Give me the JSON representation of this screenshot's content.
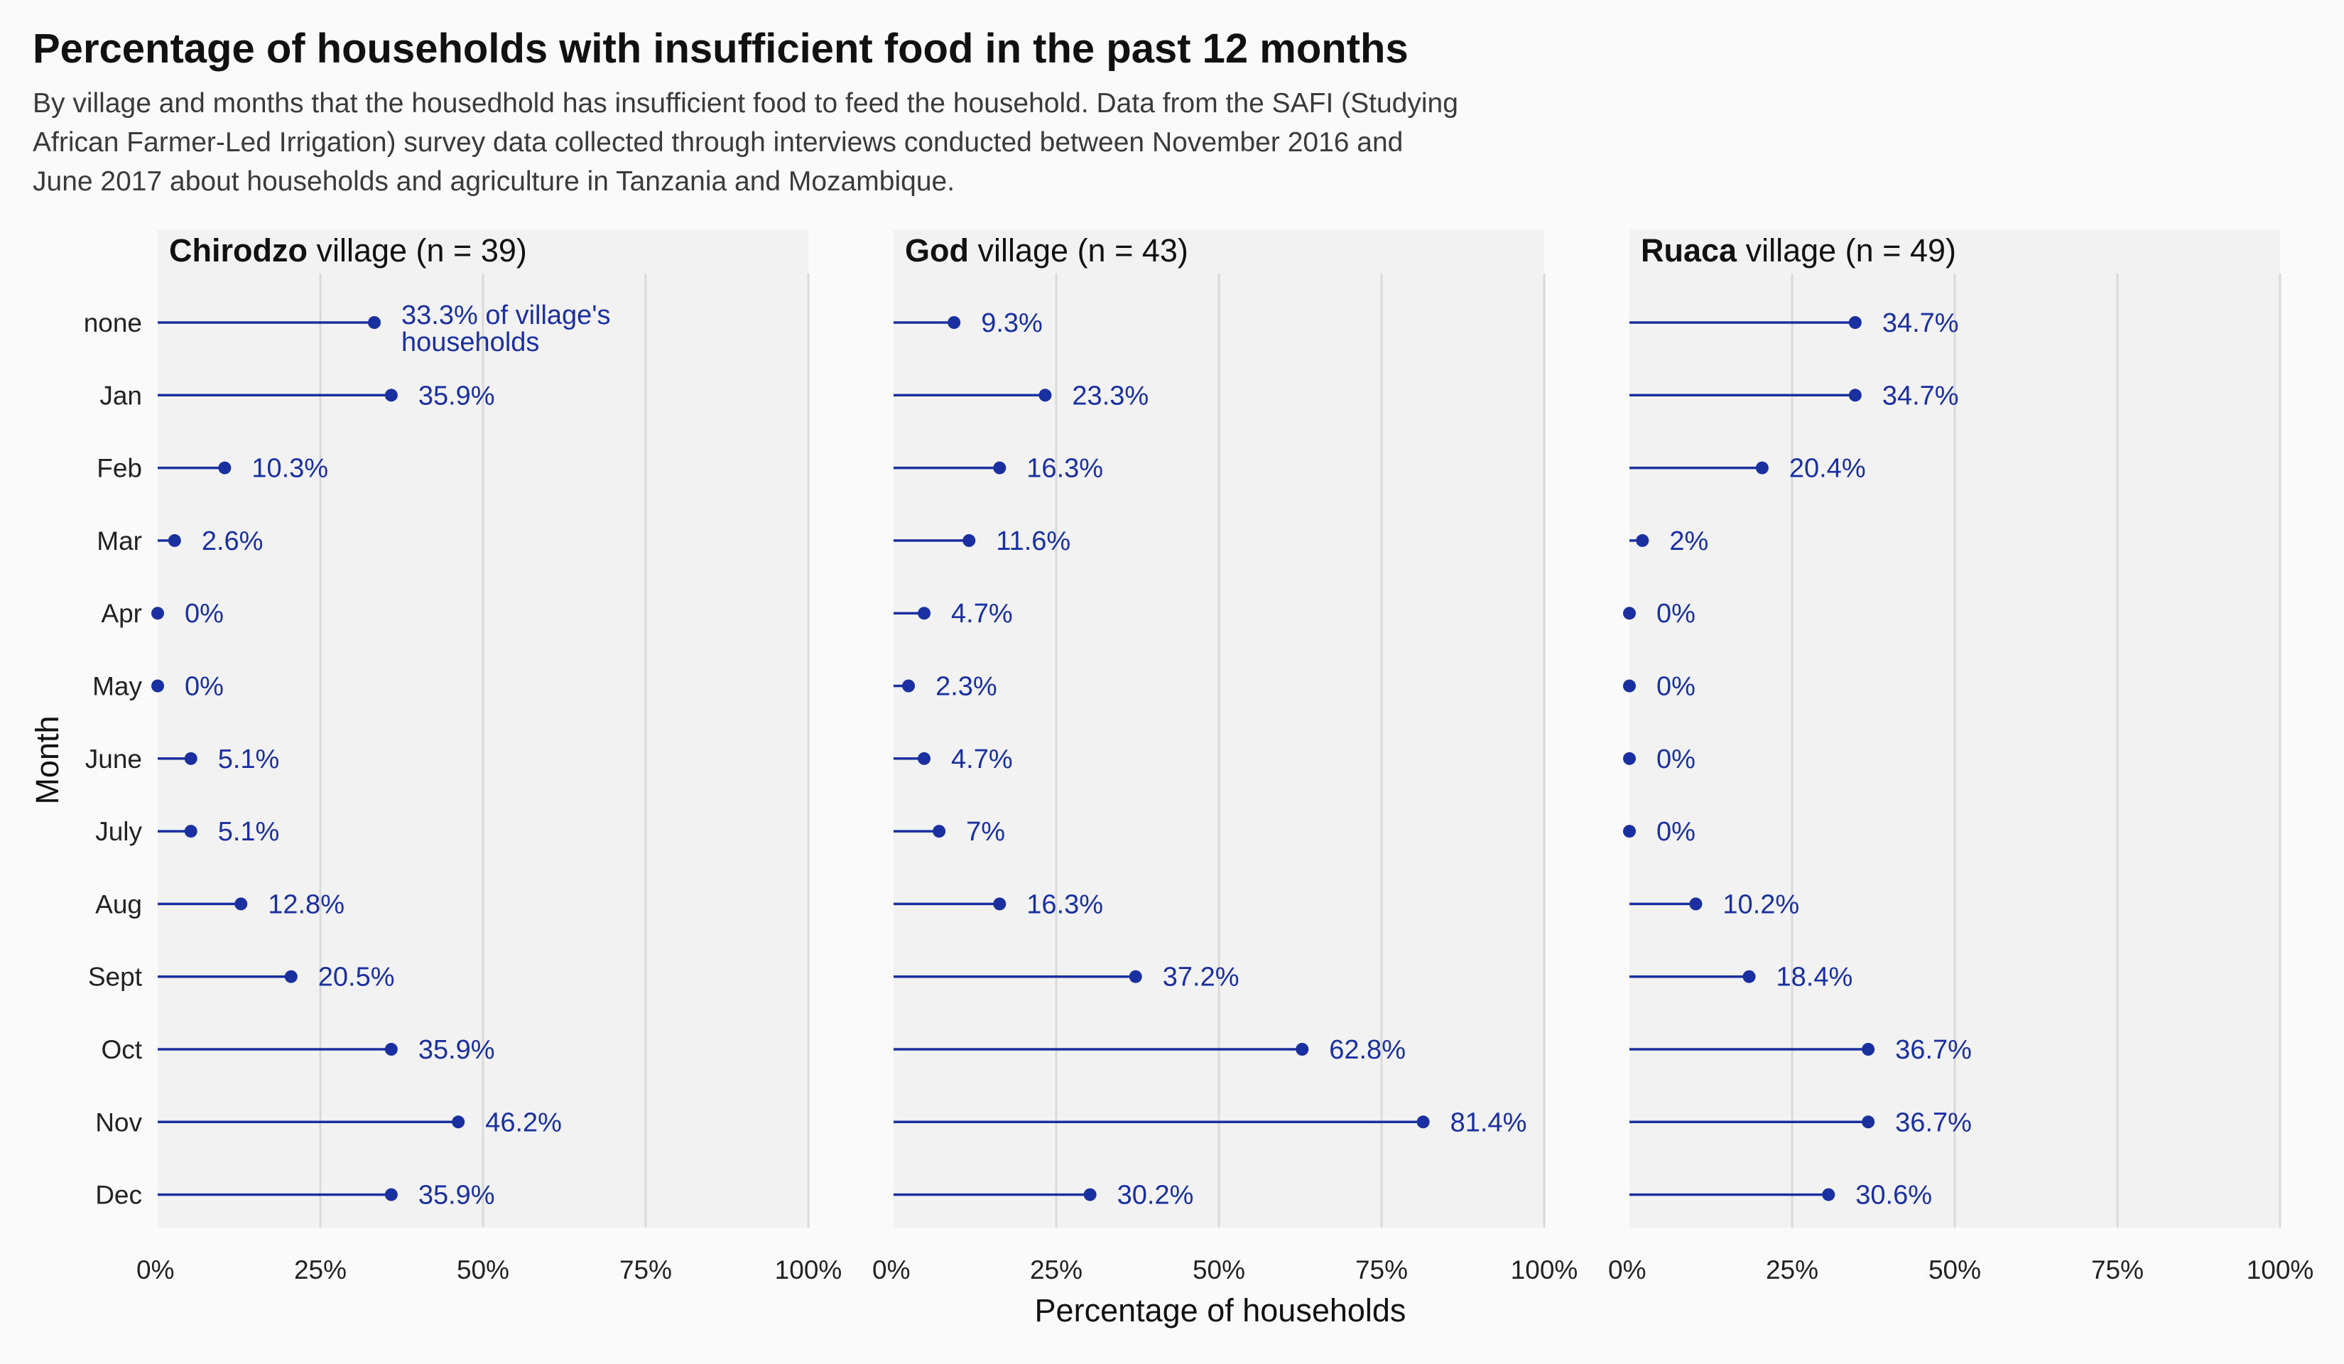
{
  "title": "Percentage of households with insufficient food in the past 12 months",
  "subtitle_lines": [
    "By village and months that the housedhold has insufficient food to feed the household. Data from the SAFI (Studying",
    "African Farmer-Led Irrigation) survey data collected through interviews conducted between November 2016 and",
    "June 2017 about households and agriculture in Tanzania and Mozambique."
  ],
  "colors": {
    "accent": "#1a2fa0",
    "panel_bg": "#f2f2f2",
    "grid": "#d9d9d9",
    "page_bg": "#fafafa"
  },
  "chart_data": {
    "type": "lollipop",
    "xlabel": "Percentage of households",
    "ylabel": "Month",
    "xlim": [
      0,
      100
    ],
    "x_ticks": [
      "0%",
      "25%",
      "50%",
      "75%",
      "100%"
    ],
    "categories": [
      "none",
      "Jan",
      "Feb",
      "Mar",
      "Apr",
      "May",
      "June",
      "July",
      "Aug",
      "Sept",
      "Oct",
      "Nov",
      "Dec"
    ],
    "grid": true,
    "panels": [
      {
        "village": "Chirodzo",
        "suffix": " village (n = 39)",
        "values": [
          33.3,
          35.9,
          10.3,
          2.6,
          0,
          0,
          5.1,
          5.1,
          12.8,
          20.5,
          35.9,
          46.2,
          35.9
        ],
        "labels": [
          "33.3% of village's|households",
          "35.9%",
          "10.3%",
          "2.6%",
          "0%",
          "0%",
          "5.1%",
          "5.1%",
          "12.8%",
          "20.5%",
          "35.9%",
          "46.2%",
          "35.9%"
        ]
      },
      {
        "village": "God",
        "suffix": " village (n = 43)",
        "values": [
          9.3,
          23.3,
          16.3,
          11.6,
          4.7,
          2.3,
          4.7,
          7,
          16.3,
          37.2,
          62.8,
          81.4,
          30.2
        ],
        "labels": [
          "9.3%",
          "23.3%",
          "16.3%",
          "11.6%",
          "4.7%",
          "2.3%",
          "4.7%",
          "7%",
          "16.3%",
          "37.2%",
          "62.8%",
          "81.4%",
          "30.2%"
        ]
      },
      {
        "village": "Ruaca",
        "suffix": " village (n = 49)",
        "values": [
          34.7,
          34.7,
          20.4,
          2,
          0,
          0,
          0,
          0,
          10.2,
          18.4,
          36.7,
          36.7,
          30.6
        ],
        "labels": [
          "34.7%",
          "34.7%",
          "20.4%",
          "2%",
          "0%",
          "0%",
          "0%",
          "0%",
          "10.2%",
          "18.4%",
          "36.7%",
          "36.7%",
          "30.6%"
        ]
      }
    ]
  }
}
